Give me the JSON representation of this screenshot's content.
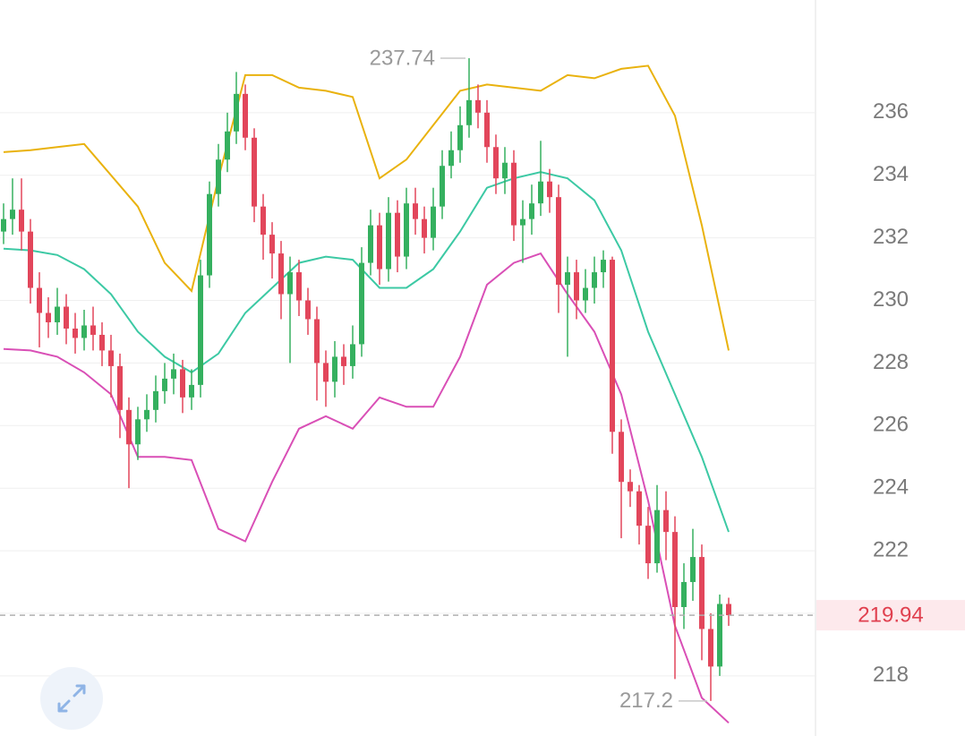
{
  "chart_data": {
    "type": "candlestick",
    "up_color": "#35b05f",
    "down_color": "#e2465b",
    "ylim": [
      216.08,
      239.6
    ],
    "yticks": [
      218,
      220,
      222,
      224,
      226,
      228,
      230,
      232,
      234,
      236
    ],
    "grid": true,
    "open": [
      232.2,
      232.6,
      232.9,
      232.2,
      230.4,
      229.6,
      229.3,
      229.8,
      229.1,
      228.8,
      229.2,
      228.9,
      228.4,
      227.9,
      226.5,
      225.4,
      226.2,
      226.5,
      227.1,
      227.5,
      227.8,
      226.9,
      227.3,
      230.8,
      233.4,
      234.5,
      235.4,
      236.6,
      235.2,
      233.0,
      232.1,
      231.5,
      230.2,
      230.9,
      230.0,
      229.4,
      228.0,
      227.4,
      228.2,
      227.9,
      228.6,
      231.2,
      232.4,
      231.0,
      232.8,
      231.4,
      233.1,
      232.6,
      232.0,
      233.0,
      234.3,
      234.8,
      235.6,
      236.4,
      236.0,
      234.9,
      233.9,
      234.4,
      232.4,
      232.6,
      233.1,
      233.8,
      233.3,
      230.5,
      230.9,
      230.0,
      230.4,
      230.9,
      231.3,
      225.8,
      224.2,
      223.9,
      222.8,
      221.6,
      223.3,
      222.6,
      220.2,
      221.0,
      221.8,
      219.5,
      218.3,
      220.3
    ],
    "high": [
      233.1,
      233.9,
      233.9,
      232.6,
      230.9,
      230.1,
      230.4,
      230.2,
      229.6,
      229.7,
      229.8,
      229.3,
      228.9,
      228.3,
      226.9,
      226.6,
      227.0,
      227.6,
      228.0,
      228.3,
      228.1,
      227.8,
      231.3,
      233.8,
      235.0,
      236.0,
      237.3,
      236.9,
      235.5,
      233.4,
      232.5,
      231.9,
      231.4,
      231.3,
      230.4,
      229.8,
      228.4,
      228.7,
      228.6,
      229.2,
      231.7,
      232.9,
      232.8,
      233.3,
      233.2,
      233.6,
      233.6,
      233.0,
      233.6,
      234.8,
      235.4,
      236.2,
      237.74,
      236.9,
      236.4,
      235.3,
      234.9,
      234.8,
      233.2,
      233.7,
      235.1,
      234.2,
      233.7,
      231.4,
      231.3,
      231.0,
      231.4,
      231.6,
      231.4,
      226.2,
      224.6,
      224.1,
      223.4,
      224.1,
      223.9,
      223.1,
      221.6,
      222.7,
      222.2,
      220.0,
      220.6,
      220.5
    ],
    "low": [
      231.8,
      232.1,
      231.6,
      229.9,
      228.5,
      228.8,
      228.9,
      228.6,
      228.3,
      228.4,
      228.4,
      227.9,
      226.9,
      225.6,
      224.0,
      224.9,
      225.8,
      226.1,
      226.7,
      227.0,
      226.4,
      226.5,
      226.9,
      230.4,
      233.0,
      234.1,
      235.0,
      234.8,
      232.5,
      231.3,
      230.7,
      229.4,
      228.0,
      229.5,
      228.9,
      226.8,
      226.6,
      226.9,
      227.3,
      227.5,
      228.2,
      230.8,
      230.5,
      230.6,
      230.9,
      231.0,
      232.1,
      231.5,
      231.6,
      232.6,
      233.9,
      234.4,
      235.2,
      235.5,
      234.4,
      233.4,
      233.4,
      231.9,
      231.2,
      232.1,
      232.7,
      232.8,
      229.6,
      228.2,
      229.4,
      229.6,
      229.9,
      230.4,
      225.1,
      222.4,
      223.4,
      222.2,
      221.1,
      221.3,
      221.7,
      217.9,
      219.5,
      220.4,
      218.5,
      217.2,
      218.0,
      219.6
    ],
    "close": [
      232.6,
      232.9,
      232.2,
      230.4,
      229.6,
      229.3,
      229.8,
      229.1,
      228.8,
      229.2,
      228.9,
      228.4,
      227.9,
      226.5,
      225.4,
      226.2,
      226.5,
      227.1,
      227.5,
      227.8,
      226.9,
      227.3,
      230.8,
      233.4,
      234.5,
      235.4,
      236.6,
      235.2,
      233.0,
      232.1,
      231.5,
      230.2,
      230.9,
      230.0,
      229.4,
      228.0,
      227.4,
      228.2,
      227.9,
      228.6,
      231.2,
      232.4,
      231.0,
      232.8,
      231.4,
      233.1,
      232.6,
      232.0,
      233.0,
      234.3,
      234.8,
      235.6,
      236.4,
      236.0,
      234.9,
      233.9,
      234.4,
      232.4,
      232.6,
      233.1,
      233.8,
      233.3,
      230.5,
      230.9,
      230.0,
      230.4,
      230.9,
      231.3,
      225.8,
      224.2,
      223.9,
      222.8,
      221.6,
      223.3,
      222.6,
      220.2,
      221.0,
      221.8,
      219.5,
      218.3,
      220.3,
      219.94
    ],
    "bands": [
      {
        "color": "#e9b20e",
        "x": [
          0,
          3,
          6,
          9,
          12,
          15,
          18,
          21,
          24,
          27,
          30,
          33,
          36,
          39,
          42,
          45,
          48,
          51,
          54,
          57,
          60,
          63,
          66,
          69,
          72,
          75,
          78,
          81
        ],
        "values": [
          234.74,
          234.8,
          234.9,
          235.0,
          234.0,
          233.0,
          231.2,
          230.3,
          233.9,
          237.2,
          237.2,
          236.8,
          236.7,
          236.5,
          233.9,
          234.5,
          235.6,
          236.7,
          236.9,
          236.8,
          236.7,
          237.2,
          237.1,
          237.4,
          237.5,
          235.9,
          232.4,
          228.4
        ]
      },
      {
        "color": "#3cc9a4",
        "x": [
          0,
          3,
          6,
          9,
          12,
          15,
          18,
          21,
          24,
          27,
          30,
          33,
          36,
          39,
          42,
          45,
          48,
          51,
          54,
          57,
          60,
          63,
          66,
          69,
          72,
          75,
          78,
          81
        ],
        "values": [
          231.65,
          231.6,
          231.45,
          231.0,
          230.2,
          229.0,
          228.2,
          227.7,
          228.3,
          229.6,
          230.4,
          231.2,
          231.4,
          231.3,
          230.4,
          230.4,
          231.0,
          232.2,
          233.6,
          233.9,
          234.1,
          233.9,
          233.2,
          231.6,
          229.0,
          227.0,
          225.0,
          222.6
        ]
      },
      {
        "color": "#d94fb6",
        "x": [
          0,
          3,
          6,
          9,
          12,
          15,
          18,
          21,
          24,
          27,
          30,
          33,
          36,
          39,
          42,
          45,
          48,
          51,
          54,
          57,
          60,
          63,
          66,
          69,
          72,
          75,
          78,
          81
        ],
        "values": [
          228.45,
          228.4,
          228.2,
          227.7,
          227.0,
          225.0,
          225.0,
          224.9,
          222.7,
          222.3,
          224.2,
          225.9,
          226.3,
          225.9,
          226.9,
          226.6,
          226.6,
          228.2,
          230.5,
          231.2,
          231.5,
          230.2,
          229.0,
          227.0,
          223.6,
          219.6,
          217.3,
          216.5
        ]
      }
    ]
  }
}
